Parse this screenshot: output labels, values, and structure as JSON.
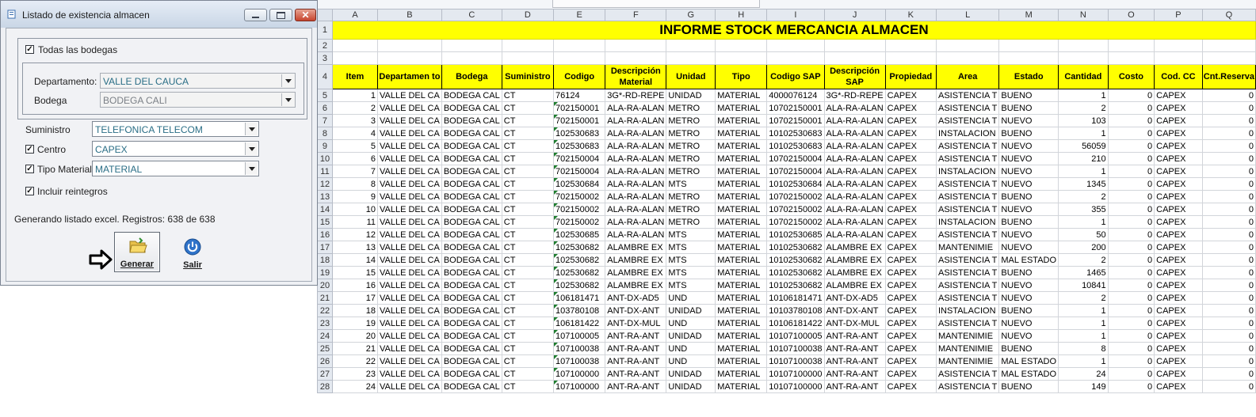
{
  "dialog": {
    "title": "Listado de existencia almacen",
    "todas_label": "Todas las bodegas",
    "departamento_label": "Departamento:",
    "departamento_value": "VALLE DEL CAUCA",
    "bodega_label": "Bodega",
    "bodega_value": "BODEGA CALI",
    "suministro_label": "Suministro",
    "suministro_value": "TELEFONICA TELECOM",
    "centro_label": "Centro",
    "centro_value": "CAPEX",
    "tipo_label": "Tipo Material",
    "tipo_value": "MATERIAL",
    "reintegros_label": "Incluir reintegros",
    "status": "Generando listado excel. Registros: 638 de 638",
    "generar_label": "Generar",
    "salir_label": "Salir",
    "checked": {
      "todas": true,
      "centro": true,
      "tipo": true,
      "reintegros": true
    }
  },
  "sheet": {
    "columns": [
      "A",
      "B",
      "C",
      "D",
      "E",
      "F",
      "G",
      "H",
      "I",
      "J",
      "K",
      "L",
      "M",
      "N",
      "O",
      "P",
      "Q"
    ],
    "title": "INFORME STOCK MERCANCIA ALMACEN",
    "headers": [
      "Item",
      "Departamen to",
      "Bodega",
      "Suministro",
      "Codigo",
      "Descripción Material",
      "Unidad",
      "Tipo",
      "Codigo SAP",
      "Descripción SAP",
      "Propiedad",
      "Area",
      "Estado",
      "Cantidad",
      "Costo",
      "Cod. CC",
      "Cnt.Reserva"
    ],
    "rows": [
      [
        "1",
        "VALLE DEL CA",
        "BODEGA CAL",
        "CT",
        "76124",
        "3G*-RD-REPE",
        "UNIDAD",
        "MATERIAL",
        "4000076124",
        "3G*-RD-REPE",
        "CAPEX",
        "ASISTENCIA T",
        "BUENO",
        "1",
        "0",
        "CAPEX",
        "0"
      ],
      [
        "2",
        "VALLE DEL CA",
        "BODEGA CAL",
        "CT",
        "702150001",
        "ALA-RA-ALAN",
        "METRO",
        "MATERIAL",
        "10702150001",
        "ALA-RA-ALAN",
        "CAPEX",
        "ASISTENCIA T",
        "BUENO",
        "2",
        "0",
        "CAPEX",
        "0"
      ],
      [
        "3",
        "VALLE DEL CA",
        "BODEGA CAL",
        "CT",
        "702150001",
        "ALA-RA-ALAN",
        "METRO",
        "MATERIAL",
        "10702150001",
        "ALA-RA-ALAN",
        "CAPEX",
        "ASISTENCIA T",
        "NUEVO",
        "103",
        "0",
        "CAPEX",
        "0"
      ],
      [
        "4",
        "VALLE DEL CA",
        "BODEGA CAL",
        "CT",
        "102530683",
        "ALA-RA-ALAN",
        "METRO",
        "MATERIAL",
        "10102530683",
        "ALA-RA-ALAN",
        "CAPEX",
        "INSTALACION",
        "BUENO",
        "1",
        "0",
        "CAPEX",
        "0"
      ],
      [
        "5",
        "VALLE DEL CA",
        "BODEGA CAL",
        "CT",
        "102530683",
        "ALA-RA-ALAN",
        "METRO",
        "MATERIAL",
        "10102530683",
        "ALA-RA-ALAN",
        "CAPEX",
        "ASISTENCIA T",
        "NUEVO",
        "56059",
        "0",
        "CAPEX",
        "0"
      ],
      [
        "6",
        "VALLE DEL CA",
        "BODEGA CAL",
        "CT",
        "702150004",
        "ALA-RA-ALAN",
        "METRO",
        "MATERIAL",
        "10702150004",
        "ALA-RA-ALAN",
        "CAPEX",
        "ASISTENCIA T",
        "NUEVO",
        "210",
        "0",
        "CAPEX",
        "0"
      ],
      [
        "7",
        "VALLE DEL CA",
        "BODEGA CAL",
        "CT",
        "702150004",
        "ALA-RA-ALAN",
        "METRO",
        "MATERIAL",
        "10702150004",
        "ALA-RA-ALAN",
        "CAPEX",
        "INSTALACION",
        "NUEVO",
        "1",
        "0",
        "CAPEX",
        "0"
      ],
      [
        "8",
        "VALLE DEL CA",
        "BODEGA CAL",
        "CT",
        "102530684",
        "ALA-RA-ALAN",
        "MTS",
        "MATERIAL",
        "10102530684",
        "ALA-RA-ALAN",
        "CAPEX",
        "ASISTENCIA T",
        "NUEVO",
        "1345",
        "0",
        "CAPEX",
        "0"
      ],
      [
        "9",
        "VALLE DEL CA",
        "BODEGA CAL",
        "CT",
        "702150002",
        "ALA-RA-ALAN",
        "METRO",
        "MATERIAL",
        "10702150002",
        "ALA-RA-ALAN",
        "CAPEX",
        "ASISTENCIA T",
        "BUENO",
        "2",
        "0",
        "CAPEX",
        "0"
      ],
      [
        "10",
        "VALLE DEL CA",
        "BODEGA CAL",
        "CT",
        "702150002",
        "ALA-RA-ALAN",
        "METRO",
        "MATERIAL",
        "10702150002",
        "ALA-RA-ALAN",
        "CAPEX",
        "ASISTENCIA T",
        "NUEVO",
        "355",
        "0",
        "CAPEX",
        "0"
      ],
      [
        "11",
        "VALLE DEL CA",
        "BODEGA CAL",
        "CT",
        "702150002",
        "ALA-RA-ALAN",
        "METRO",
        "MATERIAL",
        "10702150002",
        "ALA-RA-ALAN",
        "CAPEX",
        "INSTALACION",
        "BUENO",
        "1",
        "0",
        "CAPEX",
        "0"
      ],
      [
        "12",
        "VALLE DEL CA",
        "BODEGA CAL",
        "CT",
        "102530685",
        "ALA-RA-ALAN",
        "MTS",
        "MATERIAL",
        "10102530685",
        "ALA-RA-ALAN",
        "CAPEX",
        "ASISTENCIA T",
        "NUEVO",
        "50",
        "0",
        "CAPEX",
        "0"
      ],
      [
        "13",
        "VALLE DEL CA",
        "BODEGA CAL",
        "CT",
        "102530682",
        "ALAMBRE EX",
        "MTS",
        "MATERIAL",
        "10102530682",
        "ALAMBRE EX",
        "CAPEX",
        "MANTENIMIE",
        "NUEVO",
        "200",
        "0",
        "CAPEX",
        "0"
      ],
      [
        "14",
        "VALLE DEL CA",
        "BODEGA CAL",
        "CT",
        "102530682",
        "ALAMBRE EX",
        "MTS",
        "MATERIAL",
        "10102530682",
        "ALAMBRE EX",
        "CAPEX",
        "ASISTENCIA T",
        "MAL ESTADO",
        "2",
        "0",
        "CAPEX",
        "0"
      ],
      [
        "15",
        "VALLE DEL CA",
        "BODEGA CAL",
        "CT",
        "102530682",
        "ALAMBRE EX",
        "MTS",
        "MATERIAL",
        "10102530682",
        "ALAMBRE EX",
        "CAPEX",
        "ASISTENCIA T",
        "BUENO",
        "1465",
        "0",
        "CAPEX",
        "0"
      ],
      [
        "16",
        "VALLE DEL CA",
        "BODEGA CAL",
        "CT",
        "102530682",
        "ALAMBRE EX",
        "MTS",
        "MATERIAL",
        "10102530682",
        "ALAMBRE EX",
        "CAPEX",
        "ASISTENCIA T",
        "NUEVO",
        "10841",
        "0",
        "CAPEX",
        "0"
      ],
      [
        "17",
        "VALLE DEL CA",
        "BODEGA CAL",
        "CT",
        "106181471",
        "ANT-DX-AD5",
        "UND",
        "MATERIAL",
        "10106181471",
        "ANT-DX-AD5",
        "CAPEX",
        "ASISTENCIA T",
        "NUEVO",
        "2",
        "0",
        "CAPEX",
        "0"
      ],
      [
        "18",
        "VALLE DEL CA",
        "BODEGA CAL",
        "CT",
        "103780108",
        "ANT-DX-ANT",
        "UNIDAD",
        "MATERIAL",
        "10103780108",
        "ANT-DX-ANT",
        "CAPEX",
        "INSTALACION",
        "BUENO",
        "1",
        "0",
        "CAPEX",
        "0"
      ],
      [
        "19",
        "VALLE DEL CA",
        "BODEGA CAL",
        "CT",
        "106181422",
        "ANT-DX-MUL",
        "UND",
        "MATERIAL",
        "10106181422",
        "ANT-DX-MUL",
        "CAPEX",
        "ASISTENCIA T",
        "NUEVO",
        "1",
        "0",
        "CAPEX",
        "0"
      ],
      [
        "20",
        "VALLE DEL CA",
        "BODEGA CAL",
        "CT",
        "107100005",
        "ANT-RA-ANT",
        "UNIDAD",
        "MATERIAL",
        "10107100005",
        "ANT-RA-ANT",
        "CAPEX",
        "MANTENIMIE",
        "NUEVO",
        "1",
        "0",
        "CAPEX",
        "0"
      ],
      [
        "21",
        "VALLE DEL CA",
        "BODEGA CAL",
        "CT",
        "107100038",
        "ANT-RA-ANT",
        "UND",
        "MATERIAL",
        "10107100038",
        "ANT-RA-ANT",
        "CAPEX",
        "MANTENIMIE",
        "BUENO",
        "8",
        "0",
        "CAPEX",
        "0"
      ],
      [
        "22",
        "VALLE DEL CA",
        "BODEGA CAL",
        "CT",
        "107100038",
        "ANT-RA-ANT",
        "UND",
        "MATERIAL",
        "10107100038",
        "ANT-RA-ANT",
        "CAPEX",
        "MANTENIMIE",
        "MAL ESTADO",
        "1",
        "0",
        "CAPEX",
        "0"
      ],
      [
        "23",
        "VALLE DEL CA",
        "BODEGA CAL",
        "CT",
        "107100000",
        "ANT-RA-ANT",
        "UNIDAD",
        "MATERIAL",
        "10107100000",
        "ANT-RA-ANT",
        "CAPEX",
        "ASISTENCIA T",
        "MAL ESTADO",
        "24",
        "0",
        "CAPEX",
        "0"
      ],
      [
        "24",
        "VALLE DEL CA",
        "BODEGA CAL",
        "CT",
        "107100000",
        "ANT-RA-ANT",
        "UNIDAD",
        "MATERIAL",
        "10107100000",
        "ANT-RA-ANT",
        "CAPEX",
        "ASISTENCIA T",
        "BUENO",
        "149",
        "0",
        "CAPEX",
        "0"
      ]
    ]
  },
  "icons": {
    "app": "document-icon",
    "generar": "folder-icon",
    "salir": "power-icon",
    "indicator": "arrow-right-icon"
  },
  "colors": {
    "header_fill": "#ffff00",
    "indicator_triangle": "#1e7d2e"
  }
}
